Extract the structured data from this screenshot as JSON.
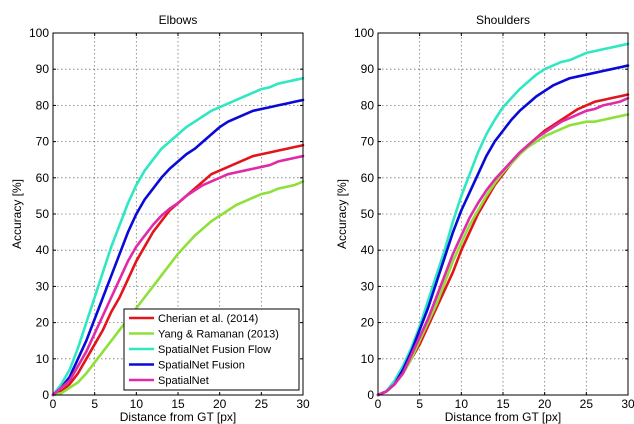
{
  "chart_data": [
    {
      "type": "line",
      "title": "Elbows",
      "xlabel": "Distance from GT [px]",
      "ylabel": "Accuracy [%]",
      "xlim": [
        0,
        30
      ],
      "ylim": [
        0,
        100
      ],
      "xticks": [
        0,
        5,
        10,
        15,
        20,
        25,
        30
      ],
      "yticks": [
        0,
        10,
        20,
        30,
        40,
        50,
        60,
        70,
        80,
        90,
        100
      ],
      "grid": true,
      "legend": "bottom-right",
      "x": [
        0,
        1,
        2,
        3,
        4,
        5,
        6,
        7,
        8,
        9,
        10,
        11,
        12,
        13,
        14,
        15,
        16,
        17,
        18,
        19,
        20,
        21,
        22,
        23,
        24,
        25,
        26,
        27,
        28,
        29,
        30
      ],
      "series": [
        {
          "name": "Cherian et al. (2014)",
          "color": "#e4141b",
          "values": [
            0,
            1,
            3,
            6,
            10,
            14,
            18,
            23,
            27,
            32,
            37,
            41,
            45,
            48,
            51,
            53,
            55,
            57,
            59,
            61,
            62,
            63,
            64,
            65,
            66,
            66.5,
            67,
            67.5,
            68,
            68.5,
            69
          ]
        },
        {
          "name": "Yang & Ramanan (2013)",
          "color": "#8ee03a",
          "values": [
            0,
            0.5,
            2,
            3.5,
            6,
            9,
            12,
            15,
            18,
            21,
            24,
            27,
            30,
            33,
            36,
            39,
            41.5,
            44,
            46,
            48,
            49.5,
            51,
            52.5,
            53.5,
            54.5,
            55.5,
            56,
            57,
            57.5,
            58,
            59
          ]
        },
        {
          "name": "SpatialNet Fusion Flow",
          "color": "#2fe8c3",
          "values": [
            0,
            3,
            7,
            13,
            20,
            27,
            34,
            41,
            47,
            53,
            58,
            62,
            65,
            68,
            70,
            72,
            74,
            75.5,
            77,
            78.5,
            79.5,
            80.5,
            81.5,
            82.5,
            83.5,
            84.5,
            85,
            86,
            86.5,
            87,
            87.5
          ]
        },
        {
          "name": "SpatialNet Fusion",
          "color": "#0a0ad8",
          "values": [
            0,
            2,
            5,
            10,
            15,
            21,
            27,
            33,
            39,
            45,
            50,
            54,
            57,
            60,
            62.5,
            64.5,
            66.5,
            68,
            70,
            72,
            74,
            75.5,
            76.5,
            77.5,
            78.5,
            79,
            79.5,
            80,
            80.5,
            81,
            81.5
          ]
        },
        {
          "name": "SpatialNet",
          "color": "#e02aa8",
          "values": [
            0,
            2,
            4,
            8,
            12,
            17,
            22,
            27,
            32,
            37,
            41,
            44,
            47,
            49.5,
            51.5,
            53,
            55,
            56.5,
            58,
            59,
            60,
            61,
            61.5,
            62,
            62.5,
            63,
            63.5,
            64.5,
            65,
            65.5,
            66
          ]
        }
      ]
    },
    {
      "type": "line",
      "title": "Shoulders",
      "xlabel": "Distance from GT [px]",
      "ylabel": "Accuracy [%]",
      "xlim": [
        0,
        30
      ],
      "ylim": [
        0,
        100
      ],
      "xticks": [
        0,
        5,
        10,
        15,
        20,
        25,
        30
      ],
      "yticks": [
        0,
        10,
        20,
        30,
        40,
        50,
        60,
        70,
        80,
        90,
        100
      ],
      "grid": true,
      "x": [
        0,
        1,
        2,
        3,
        4,
        5,
        6,
        7,
        8,
        9,
        10,
        11,
        12,
        13,
        14,
        15,
        16,
        17,
        18,
        19,
        20,
        21,
        22,
        23,
        24,
        25,
        26,
        27,
        28,
        29,
        30
      ],
      "series": [
        {
          "name": "Cherian et al. (2014)",
          "color": "#e4141b",
          "values": [
            0,
            1,
            3,
            6,
            10,
            14,
            19,
            24,
            29,
            34,
            40,
            45,
            50,
            54,
            58,
            61,
            64,
            66.5,
            69,
            71,
            73,
            74.5,
            76,
            77.5,
            79,
            80,
            81,
            81.5,
            82,
            82.5,
            83
          ]
        },
        {
          "name": "Yang & Ramanan (2013)",
          "color": "#8ee03a",
          "values": [
            0,
            1,
            3,
            6,
            10,
            15,
            20,
            25,
            31,
            37,
            42,
            47,
            51,
            55,
            58.5,
            61.5,
            64,
            66.5,
            68.5,
            70,
            71.5,
            72.5,
            73.5,
            74.5,
            75,
            75.5,
            75.5,
            76,
            76.5,
            77,
            77.5
          ]
        },
        {
          "name": "SpatialNet Fusion Flow",
          "color": "#2fe8c3",
          "values": [
            0,
            1,
            4,
            8,
            13,
            19,
            26,
            33,
            40,
            48,
            55,
            61,
            67,
            72,
            76,
            79.5,
            82,
            84.5,
            86.5,
            88.5,
            90,
            91,
            92,
            92.5,
            93.5,
            94.5,
            95,
            95.5,
            96,
            96.5,
            97
          ]
        },
        {
          "name": "SpatialNet Fusion",
          "color": "#0a0ad8",
          "values": [
            0,
            1,
            3,
            7,
            12,
            18,
            24,
            31,
            38,
            45,
            51,
            56,
            61,
            66,
            70,
            73,
            76,
            78.5,
            80.5,
            82.5,
            84,
            85.5,
            86.5,
            87.5,
            88,
            88.5,
            89,
            89.5,
            90,
            90.5,
            91
          ]
        },
        {
          "name": "SpatialNet",
          "color": "#e02aa8",
          "values": [
            0,
            1,
            3,
            6,
            11,
            16,
            21,
            27,
            33,
            39,
            44,
            49,
            53,
            56.5,
            59.5,
            62,
            64.5,
            67,
            69,
            71,
            72.5,
            74,
            75.5,
            76.5,
            77.5,
            78.5,
            79,
            80,
            80.5,
            81,
            82
          ]
        }
      ]
    }
  ]
}
